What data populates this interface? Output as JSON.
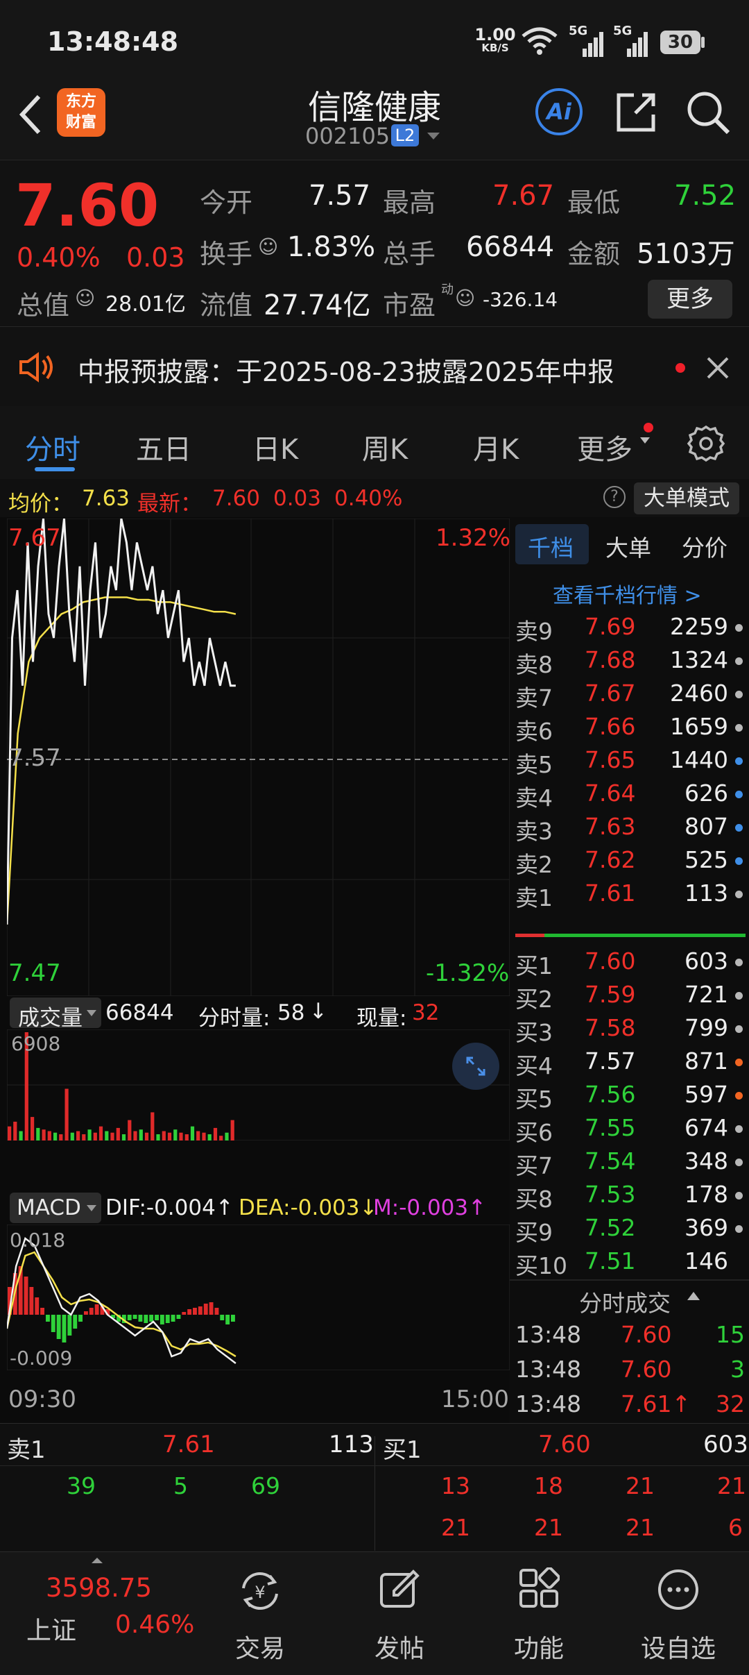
{
  "status_bar": {
    "time": "13:48:48",
    "net_speed_value": "1.00",
    "net_speed_unit": "KB/S",
    "signal1": "5G",
    "signal2": "5G",
    "battery": "30"
  },
  "header": {
    "logo_line1": "东方",
    "logo_line2": "财富",
    "title": "信隆健康",
    "code": "002105",
    "level_badge": "L2",
    "ai_label": "Ai"
  },
  "quote": {
    "price": "7.60",
    "change_pct": "0.40%",
    "change": "0.03",
    "open_label": "今开",
    "open": "7.57",
    "high_label": "最高",
    "high": "7.67",
    "low_label": "最低",
    "low": "7.52",
    "turnover_label": "换手",
    "turnover": "1.83%",
    "volume_label": "总手",
    "volume": "66844",
    "amount_label": "金额",
    "amount": "5103万",
    "mktcap_label": "总值",
    "mktcap": "28.01亿",
    "float_label": "流值",
    "float_cap": "27.74亿",
    "pe_label": "市盈",
    "pe_sup": "动",
    "pe": "-326.14",
    "more_button": "更多"
  },
  "notice": {
    "text": "中报预披露：于2025-08-23披露2025年中报"
  },
  "tabs": {
    "items": [
      "分时",
      "五日",
      "日K",
      "周K",
      "月K",
      "更多"
    ],
    "active": 0
  },
  "intraday": {
    "avg_label": "均价：",
    "avg": "7.63",
    "latest_label": "最新：",
    "latest": "7.60",
    "latest_chg": "0.03",
    "latest_pct": "0.40%",
    "mode_button": "大单模式",
    "price_top": "7.67",
    "pct_top": "1.32%",
    "price_mid": "7.57",
    "price_bottom": "7.47",
    "pct_bottom": "-1.32%",
    "vol_selector": "成交量",
    "vol_total": "66844",
    "vol_minute_label": "分时量:",
    "vol_minute": "58",
    "vol_minute_arrow": "↓",
    "vol_now_label": "现量:",
    "vol_now": "32",
    "vol_max": "6908",
    "macd_selector": "MACD",
    "dif": "DIF:-0.004↑",
    "dea": "DEA:-0.003↓",
    "m": "M:-0.003↑",
    "macd_top": "0.018",
    "macd_bottom": "-0.009",
    "time_start": "09:30",
    "time_end": "15:00"
  },
  "orderbook": {
    "tabs": [
      "千档",
      "大单",
      "分价"
    ],
    "view_link": "查看千档行情 >",
    "asks": [
      {
        "label": "卖9",
        "price": "7.69",
        "vol": "2259",
        "dot": "gray"
      },
      {
        "label": "卖8",
        "price": "7.68",
        "vol": "1324",
        "dot": "gray"
      },
      {
        "label": "卖7",
        "price": "7.67",
        "vol": "2460",
        "dot": "gray"
      },
      {
        "label": "卖6",
        "price": "7.66",
        "vol": "1659",
        "dot": "gray"
      },
      {
        "label": "卖5",
        "price": "7.65",
        "vol": "1440",
        "dot": "blue"
      },
      {
        "label": "卖4",
        "price": "7.64",
        "vol": "626",
        "dot": "blue"
      },
      {
        "label": "卖3",
        "price": "7.63",
        "vol": "807",
        "dot": "blue"
      },
      {
        "label": "卖2",
        "price": "7.62",
        "vol": "525",
        "dot": "blue"
      },
      {
        "label": "卖1",
        "price": "7.61",
        "vol": "113",
        "dot": "gray"
      }
    ],
    "bids": [
      {
        "label": "买1",
        "price": "7.60",
        "vol": "603",
        "dot": "gray",
        "color": "red"
      },
      {
        "label": "买2",
        "price": "7.59",
        "vol": "721",
        "dot": "gray",
        "color": "red"
      },
      {
        "label": "买3",
        "price": "7.58",
        "vol": "799",
        "dot": "gray",
        "color": "red"
      },
      {
        "label": "买4",
        "price": "7.57",
        "vol": "871",
        "dot": "orange",
        "color": "white"
      },
      {
        "label": "买5",
        "price": "7.56",
        "vol": "597",
        "dot": "orange",
        "color": "green"
      },
      {
        "label": "买6",
        "price": "7.55",
        "vol": "674",
        "dot": "gray",
        "color": "green"
      },
      {
        "label": "买7",
        "price": "7.54",
        "vol": "348",
        "dot": "gray",
        "color": "green"
      },
      {
        "label": "买8",
        "price": "7.53",
        "vol": "178",
        "dot": "gray",
        "color": "green"
      },
      {
        "label": "买9",
        "price": "7.52",
        "vol": "369",
        "dot": "gray",
        "color": "green"
      },
      {
        "label": "买10",
        "price": "7.51",
        "vol": "146",
        "dot": "",
        "color": "green"
      }
    ],
    "ticks_title": "分时成交",
    "ticks": [
      {
        "time": "13:48",
        "price": "7.60",
        "vol": "15",
        "vol_color": "green"
      },
      {
        "time": "13:48",
        "price": "7.60",
        "vol": "3",
        "vol_color": "green"
      },
      {
        "time": "13:48",
        "price": "7.61↑",
        "vol": "32",
        "vol_color": "red"
      }
    ]
  },
  "bottom_quote": {
    "ask_label": "卖1",
    "ask_price": "7.61",
    "ask_vol": "113",
    "bid_label": "买1",
    "bid_price": "7.60",
    "bid_vol": "603",
    "ask_queue": [
      "39",
      "5",
      "69"
    ],
    "bid_queue_row1": [
      "13",
      "18",
      "21",
      "21"
    ],
    "bid_queue_row2": [
      "21",
      "21",
      "21",
      "6"
    ]
  },
  "nav": {
    "index_value": "3598.75",
    "index_name": "上证",
    "index_pct": "0.46%",
    "items": [
      "交易",
      "发帖",
      "功能",
      "设自选"
    ]
  },
  "chart_data": {
    "type": "line",
    "title": "",
    "xlabel": "",
    "ylabel": "",
    "x_range": [
      "09:30",
      "15:00"
    ],
    "ylim": [
      7.47,
      7.67
    ],
    "reference_price": 7.57,
    "series": [
      {
        "values": [
          7.5,
          7.62,
          7.64,
          7.6,
          7.66,
          7.61,
          7.65,
          7.67,
          7.63,
          7.62,
          7.65,
          7.67,
          7.63,
          7.61,
          7.65,
          7.6,
          7.64,
          7.66,
          7.62,
          7.63,
          7.65,
          7.64,
          7.67,
          7.66,
          7.64,
          7.66,
          7.65,
          7.64,
          7.65,
          7.63,
          7.64,
          7.62,
          7.63,
          7.64,
          7.61,
          7.62,
          7.6,
          7.61,
          7.6,
          7.62,
          7.61,
          7.6,
          7.61,
          7.6,
          7.6
        ]
      },
      {
        "values": [
          7.5,
          7.58,
          7.61,
          7.62,
          7.625,
          7.63,
          7.632,
          7.635,
          7.636,
          7.637,
          7.637,
          7.637,
          7.636,
          7.636,
          7.635,
          7.635,
          7.634,
          7.633,
          7.632,
          7.631,
          7.631,
          7.63
        ]
      }
    ],
    "volume": {
      "ylim": [
        0,
        6908
      ],
      "values": [
        900,
        1200,
        600,
        6908,
        1500,
        800,
        700,
        600,
        500,
        400,
        3300,
        500,
        600,
        400,
        700,
        500,
        900,
        600,
        500,
        800,
        400,
        1300,
        600,
        700,
        500,
        1800,
        400,
        600,
        500,
        700,
        500,
        400,
        900,
        600,
        500,
        400,
        800,
        300,
        500,
        1300
      ]
    },
    "macd": {
      "ylim": [
        -0.009,
        0.018
      ],
      "dif": -0.004,
      "dea": -0.003,
      "m": -0.003
    }
  }
}
